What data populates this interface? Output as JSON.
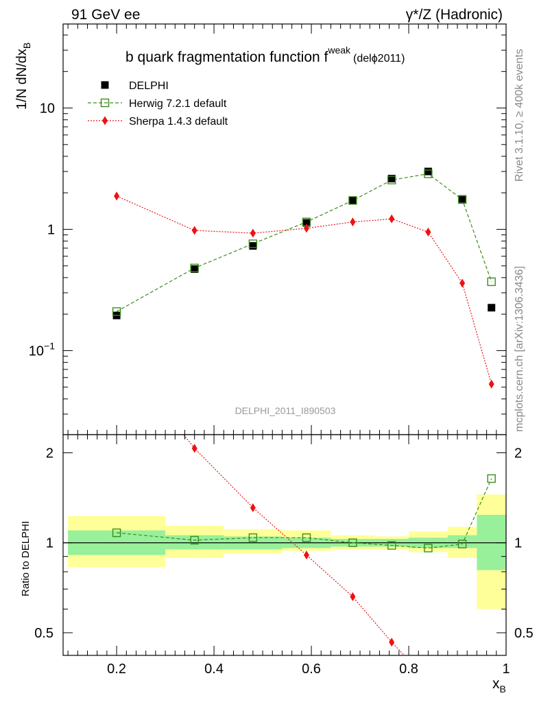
{
  "header": {
    "left": "91 GeV ee",
    "right": "γ*/Z (Hadronic)"
  },
  "side": {
    "rivet": "Rivet 3.1.10, ≥ 400k events",
    "mcplots": "mcplots.cern.ch [arXiv:1306.3436]"
  },
  "watermark": "DELPHI_2011_I890503",
  "chart_data": [
    {
      "type": "scatter",
      "title_main": "b quark fragmentation function f",
      "title_sup": "weak",
      "title_sub": "(delϕ2011)",
      "ylabel": "1/N dN/dx",
      "ylabel_sub": "B",
      "xlabel": "x",
      "xlabel_sub": "B",
      "yscale": "log",
      "xlim": [
        0.09,
        1.0
      ],
      "ylim": [
        0.0203,
        49.3
      ],
      "xticks": [
        0.2,
        0.4,
        0.6,
        0.8,
        1
      ],
      "xtick_labels": [
        "0.2",
        "0.4",
        "0.6",
        "0.8",
        "1"
      ],
      "ytick_labels": [
        {
          "value": 0.1,
          "base": "10",
          "exp": "−1"
        },
        {
          "value": 1,
          "base": "1",
          "exp": ""
        },
        {
          "value": 10,
          "base": "10",
          "exp": ""
        }
      ],
      "legend_position": "top-left",
      "x": [
        0.2,
        0.36,
        0.48,
        0.59,
        0.685,
        0.765,
        0.84,
        0.91,
        0.97
      ],
      "series": [
        {
          "name": "DELPHI",
          "color": "#000000",
          "marker": "filled-square",
          "line": "none",
          "values": [
            0.195,
            0.47,
            0.73,
            1.13,
            1.73,
            2.62,
            3.0,
            1.78,
            0.226
          ]
        },
        {
          "name": "Herwig 7.2.1 default",
          "color": "#3a8c1a",
          "marker": "open-square",
          "line": "dashed",
          "values": [
            0.21,
            0.48,
            0.76,
            1.15,
            1.73,
            2.55,
            2.87,
            1.76,
            0.37
          ]
        },
        {
          "name": "Sherpa 1.4.3 default",
          "color": "#ee1111",
          "marker": "diamond",
          "line": "dotted",
          "values": [
            1.88,
            0.98,
            0.93,
            1.02,
            1.15,
            1.22,
            0.95,
            0.36,
            0.053
          ]
        }
      ]
    },
    {
      "type": "scatter",
      "ylabel": "Ratio to DELPHI",
      "ylim": [
        0.42,
        2.3
      ],
      "yticks": [
        0.5,
        1,
        2
      ],
      "ytick_labels": [
        "0.5",
        "1",
        "2"
      ],
      "bands": [
        {
          "x0": 0.1,
          "x1": 0.3,
          "inner": [
            0.91,
            1.1
          ],
          "outer": [
            0.83,
            1.23
          ]
        },
        {
          "x0": 0.3,
          "x1": 0.42,
          "inner": [
            0.95,
            1.06
          ],
          "outer": [
            0.89,
            1.14
          ]
        },
        {
          "x0": 0.42,
          "x1": 0.54,
          "inner": [
            0.95,
            1.05
          ],
          "outer": [
            0.92,
            1.11
          ]
        },
        {
          "x0": 0.54,
          "x1": 0.64,
          "inner": [
            0.96,
            1.04
          ],
          "outer": [
            0.94,
            1.1
          ]
        },
        {
          "x0": 0.64,
          "x1": 0.73,
          "inner": [
            0.97,
            1.03
          ],
          "outer": [
            0.95,
            1.06
          ]
        },
        {
          "x0": 0.73,
          "x1": 0.8,
          "inner": [
            0.97,
            1.03
          ],
          "outer": [
            0.95,
            1.05
          ]
        },
        {
          "x0": 0.8,
          "x1": 0.88,
          "inner": [
            0.96,
            1.04
          ],
          "outer": [
            0.93,
            1.09
          ]
        },
        {
          "x0": 0.88,
          "x1": 0.94,
          "inner": [
            0.96,
            1.06
          ],
          "outer": [
            0.89,
            1.13
          ]
        },
        {
          "x0": 0.94,
          "x1": 1.0,
          "inner": [
            0.81,
            1.24
          ],
          "outer": [
            0.6,
            1.45
          ]
        }
      ],
      "band_colors": {
        "inner": "#98f09a",
        "outer": "#ffff99"
      },
      "series": [
        {
          "name": "Herwig 7.2.1 default",
          "color": "#3a8c1a",
          "x": [
            0.2,
            0.36,
            0.48,
            0.59,
            0.685,
            0.765,
            0.84,
            0.91,
            0.97
          ],
          "values": [
            1.08,
            1.02,
            1.04,
            1.04,
            1.0,
            0.98,
            0.96,
            0.99,
            1.64
          ]
        },
        {
          "name": "Sherpa 1.4.3 default",
          "color": "#ee1111",
          "x": [
            0.3375,
            0.36,
            0.48,
            0.59,
            0.685,
            0.765,
            0.791
          ],
          "values": [
            2.3,
            2.07,
            1.31,
            0.91,
            0.66,
            0.465,
            0.42
          ]
        }
      ]
    }
  ]
}
